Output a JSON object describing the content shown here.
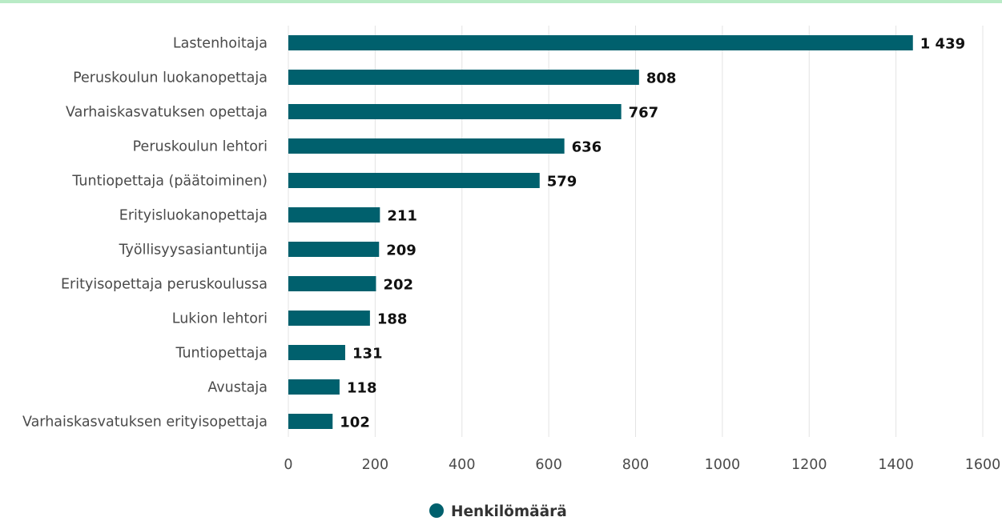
{
  "chart_data": {
    "type": "bar",
    "orientation": "horizontal",
    "categories": [
      "Lastenhoitaja",
      "Peruskoulun luokanopettaja",
      "Varhaiskasvatuksen opettaja",
      "Peruskoulun lehtori",
      "Tuntiopettaja (päätoiminen)",
      "Erityisluokanopettaja",
      "Työllisyysasiantuntija",
      "Erityisopettaja peruskoulussa",
      "Lukion lehtori",
      "Tuntiopettaja",
      "Avustaja",
      "Varhaiskasvatuksen erityisopettaja"
    ],
    "series": [
      {
        "name": "Henkilömäärä",
        "color": "#00606d",
        "values": [
          1439,
          808,
          767,
          636,
          579,
          211,
          209,
          202,
          188,
          131,
          118,
          102
        ],
        "value_labels": [
          "1 439",
          "808",
          "767",
          "636",
          "579",
          "211",
          "209",
          "202",
          "188",
          "131",
          "118",
          "102"
        ]
      }
    ],
    "xlim": [
      0,
      1600
    ],
    "xticks": [
      0,
      200,
      400,
      600,
      800,
      1000,
      1200,
      1400,
      1600
    ],
    "xtick_labels": [
      "0",
      "200",
      "400",
      "600",
      "800",
      "1000",
      "1200",
      "1400",
      "1600"
    ],
    "grid": true,
    "legend_position": "bottom-center",
    "colors": {
      "bar": "#00606d",
      "grid": "#e3e3e3",
      "top_border": "#b9ebc6"
    }
  }
}
